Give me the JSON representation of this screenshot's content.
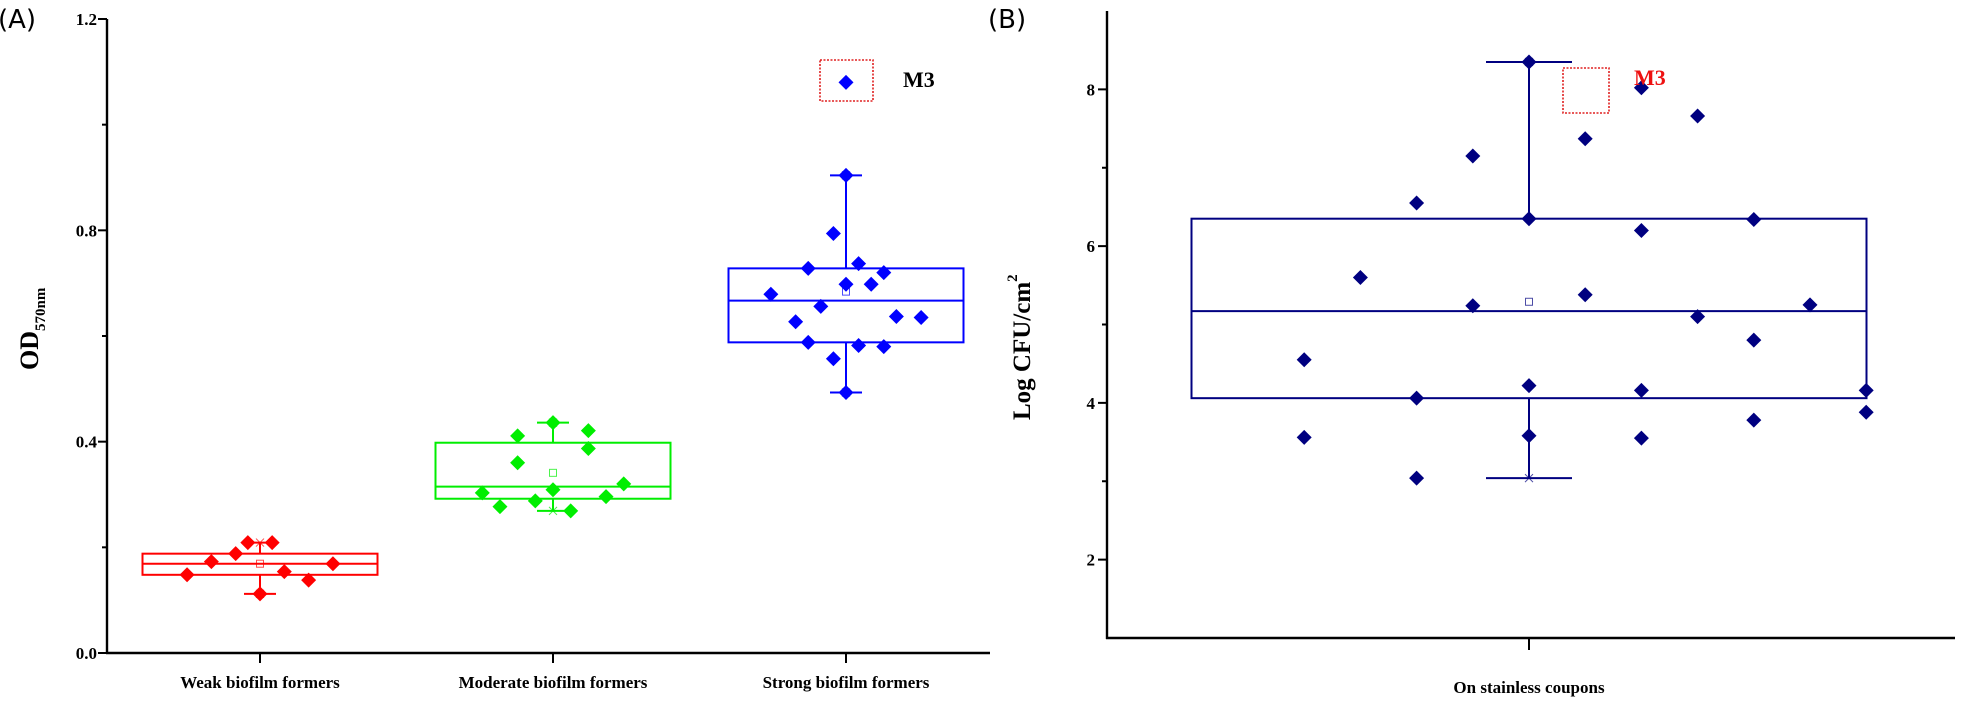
{
  "figure": {
    "panels": [
      {
        "label": "(A)"
      },
      {
        "label": "(B)"
      }
    ]
  },
  "chart_data": [
    {
      "type": "box",
      "panel": "(A)",
      "title": "",
      "xlabel": "",
      "ylabel": "OD",
      "ylabel_sub": "570nm",
      "ylim": [
        0.0,
        1.2
      ],
      "yticks": [
        0.0,
        0.4,
        0.8,
        1.2
      ],
      "ytick_labels": [
        "0.0",
        "0.4",
        "0.8",
        "1.2"
      ],
      "yminor_ticks": [
        0.2,
        0.6,
        1.0
      ],
      "grid": false,
      "categories": [
        "Weak biofilm formers",
        "Moderate biofilm formers",
        "Strong biofilm formers"
      ],
      "series": [
        {
          "name": "Weak biofilm formers",
          "color": "#ff0000",
          "box": {
            "q1": 0.148,
            "median": 0.169,
            "q3": 0.188,
            "mean": 0.169,
            "whisker_low": 0.112,
            "whisker_high": 0.209
          },
          "points": [
            {
              "offset": -0.33,
              "value": 0.148
            },
            {
              "offset": -0.22,
              "value": 0.173
            },
            {
              "offset": -0.11,
              "value": 0.188
            },
            {
              "offset": -0.055,
              "value": 0.209
            },
            {
              "offset": 0.0,
              "value": 0.112
            },
            {
              "offset": 0.055,
              "value": 0.209
            },
            {
              "offset": 0.11,
              "value": 0.154
            },
            {
              "offset": 0.22,
              "value": 0.138
            },
            {
              "offset": 0.33,
              "value": 0.169
            }
          ]
        },
        {
          "name": "Moderate biofilm formers",
          "color": "#00ee00",
          "box": {
            "q1": 0.292,
            "median": 0.315,
            "q3": 0.398,
            "mean": 0.341,
            "whisker_low": 0.269,
            "whisker_high": 0.436
          },
          "points": [
            {
              "offset": -0.32,
              "value": 0.303
            },
            {
              "offset": -0.24,
              "value": 0.277
            },
            {
              "offset": -0.16,
              "value": 0.411
            },
            {
              "offset": -0.16,
              "value": 0.36
            },
            {
              "offset": -0.08,
              "value": 0.288
            },
            {
              "offset": 0.0,
              "value": 0.436
            },
            {
              "offset": 0.0,
              "value": 0.309
            },
            {
              "offset": 0.08,
              "value": 0.269
            },
            {
              "offset": 0.16,
              "value": 0.421
            },
            {
              "offset": 0.16,
              "value": 0.387
            },
            {
              "offset": 0.24,
              "value": 0.296
            },
            {
              "offset": 0.32,
              "value": 0.32
            }
          ]
        },
        {
          "name": "Strong biofilm formers",
          "color": "#0000ff",
          "box": {
            "q1": 0.588,
            "median": 0.667,
            "q3": 0.728,
            "mean": 0.684,
            "whisker_low": 0.493,
            "whisker_high": 0.904
          },
          "points": [
            {
              "offset": -0.34,
              "value": 0.679
            },
            {
              "offset": -0.228,
              "value": 0.627
            },
            {
              "offset": -0.171,
              "value": 0.728
            },
            {
              "offset": -0.171,
              "value": 0.588
            },
            {
              "offset": -0.114,
              "value": 0.656
            },
            {
              "offset": -0.057,
              "value": 0.794
            },
            {
              "offset": -0.057,
              "value": 0.557
            },
            {
              "offset": 0.0,
              "value": 0.904
            },
            {
              "offset": 0.0,
              "value": 0.698
            },
            {
              "offset": 0.0,
              "value": 0.493
            },
            {
              "offset": 0.057,
              "value": 0.737
            },
            {
              "offset": 0.057,
              "value": 0.582
            },
            {
              "offset": 0.114,
              "value": 0.698
            },
            {
              "offset": 0.171,
              "value": 0.72
            },
            {
              "offset": 0.171,
              "value": 0.58
            },
            {
              "offset": 0.228,
              "value": 0.637
            },
            {
              "offset": 0.34,
              "value": 0.635
            }
          ],
          "outlier": {
            "label": "M3",
            "offset": 0.0,
            "value": 1.08
          }
        }
      ],
      "annotation": {
        "text": "M3",
        "text_color": "#000000",
        "box_color": "#e02020"
      }
    },
    {
      "type": "box",
      "panel": "(B)",
      "title": "",
      "xlabel": "",
      "ylabel": "Log CFU/cm",
      "ylabel_sup": "2",
      "ylim": [
        1,
        9
      ],
      "yticks": [
        2,
        4,
        6,
        8
      ],
      "ytick_labels": [
        "2",
        "4",
        "6",
        "8"
      ],
      "yminor_ticks": [
        3,
        5,
        7
      ],
      "grid": false,
      "categories": [
        "On stainless coupons"
      ],
      "series": [
        {
          "name": "On stainless coupons",
          "color": "#000080",
          "box": {
            "q1": 4.06,
            "median": 5.17,
            "q3": 6.35,
            "mean": 5.29,
            "whisker_low": 3.04,
            "whisker_high": 8.35
          },
          "points": [
            {
              "offset": -0.8,
              "value": 4.55
            },
            {
              "offset": -0.8,
              "value": 3.56
            },
            {
              "offset": -0.6,
              "value": 5.6
            },
            {
              "offset": -0.4,
              "value": 6.55
            },
            {
              "offset": -0.4,
              "value": 4.06
            },
            {
              "offset": -0.4,
              "value": 3.04
            },
            {
              "offset": -0.2,
              "value": 7.15
            },
            {
              "offset": -0.2,
              "value": 5.24
            },
            {
              "offset": 0.0,
              "value": 8.35
            },
            {
              "offset": 0.0,
              "value": 6.35
            },
            {
              "offset": 0.0,
              "value": 4.22
            },
            {
              "offset": 0.0,
              "value": 3.58
            },
            {
              "offset": 0.2,
              "value": 7.37
            },
            {
              "offset": 0.2,
              "value": 5.38
            },
            {
              "offset": 0.4,
              "value": 6.2
            },
            {
              "offset": 0.4,
              "value": 4.16
            },
            {
              "offset": 0.4,
              "value": 3.55
            },
            {
              "offset": 0.6,
              "value": 7.66
            },
            {
              "offset": 0.6,
              "value": 5.1
            },
            {
              "offset": 0.8,
              "value": 6.34
            },
            {
              "offset": 0.8,
              "value": 4.8
            },
            {
              "offset": 0.8,
              "value": 3.78
            },
            {
              "offset": 1.0,
              "value": 5.25
            },
            {
              "offset": 1.2,
              "value": 4.16
            },
            {
              "offset": 1.2,
              "value": 3.88
            }
          ],
          "outlier": {
            "label": "M3",
            "offset": 0.4,
            "value": 8.02
          }
        }
      ],
      "annotation": {
        "text": "M3",
        "text_color": "#ee1111",
        "box_color": "#e02020"
      }
    }
  ]
}
